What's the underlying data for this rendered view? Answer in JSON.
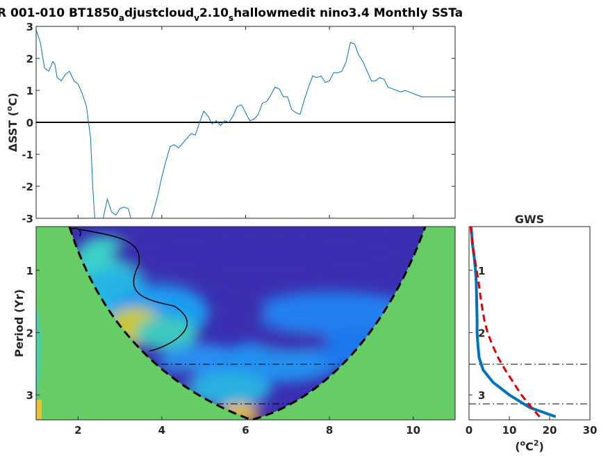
{
  "title": {
    "prefix": "R 001-010 BT1850",
    "sub1": "a",
    "mid1": "djustcloud",
    "sub2": "v",
    "mid2": "2.10",
    "sub3": "s",
    "suffix": "hallowmedit nino3.4 Monthly SSTa"
  },
  "colors": {
    "series": "#0072bd",
    "gws": "#0072bd",
    "significance": "#e00000",
    "masked": "#66cc66",
    "low_power": "#3a2fb0"
  },
  "chart_data": [
    {
      "type": "line",
      "ylabel": "ΔSST (°C)",
      "ylabel_main": "ΔSST (",
      "ylabel_unit": "o",
      "ylabel_tail": "C)",
      "xlim": [
        1,
        11
      ],
      "ylim": [
        -3,
        3
      ],
      "yticks": [
        -3,
        -2,
        -1,
        0,
        1,
        2,
        3
      ],
      "grid": false,
      "series": [
        {
          "x": [
            1.0,
            1.1,
            1.2,
            1.3,
            1.4,
            1.45,
            1.5,
            1.6,
            1.7,
            1.8,
            1.9,
            2.0,
            2.1,
            2.2,
            2.3,
            2.35,
            2.4,
            2.45,
            2.5,
            2.55,
            2.6,
            2.7,
            2.8,
            2.9,
            3.0,
            3.1,
            3.2,
            3.3,
            3.4,
            3.5,
            3.6,
            3.7,
            3.8,
            3.9,
            4.0,
            4.1,
            4.2,
            4.3,
            4.4,
            4.5,
            4.6,
            4.7,
            4.8,
            4.9,
            5.0,
            5.1,
            5.2,
            5.3,
            5.4,
            5.5,
            5.6,
            5.7,
            5.8,
            5.9,
            6.0,
            6.1,
            6.2,
            6.3,
            6.4,
            6.5,
            6.6,
            6.7,
            6.8,
            6.9,
            7.0,
            7.1,
            7.2,
            7.3,
            7.4,
            7.5,
            7.6,
            7.7,
            7.8,
            7.9,
            8.0,
            8.1,
            8.2,
            8.3,
            8.4,
            8.5,
            8.6,
            8.7,
            8.8,
            8.9,
            9.0,
            9.1,
            9.2,
            9.3,
            9.4,
            9.5,
            9.6,
            9.7,
            9.8,
            9.9,
            10.0,
            10.1,
            10.2,
            10.3,
            10.4,
            10.5,
            10.6,
            10.7,
            10.8,
            10.9,
            11.0
          ],
          "y": [
            2.9,
            2.5,
            1.7,
            1.6,
            1.9,
            1.8,
            1.4,
            1.3,
            1.5,
            1.6,
            1.3,
            1.2,
            0.9,
            0.5,
            -0.5,
            -2.0,
            -3.0,
            -3.5,
            -3.8,
            -3.4,
            -3.0,
            -2.4,
            -2.8,
            -2.9,
            -2.7,
            -2.65,
            -2.7,
            -3.2,
            -3.5,
            -3.6,
            -3.4,
            -3.2,
            -2.8,
            -2.3,
            -1.7,
            -1.2,
            -0.75,
            -0.7,
            -0.8,
            -0.65,
            -0.5,
            -0.35,
            -0.4,
            0.0,
            0.35,
            0.2,
            -0.05,
            0.05,
            -0.1,
            0.05,
            0.0,
            0.2,
            0.5,
            0.55,
            0.3,
            0.05,
            0.1,
            0.25,
            0.6,
            0.65,
            0.85,
            1.1,
            1.05,
            0.8,
            0.8,
            0.4,
            0.3,
            0.25,
            0.7,
            1.1,
            1.45,
            1.4,
            1.45,
            1.25,
            1.3,
            1.55,
            1.55,
            1.6,
            1.9,
            2.5,
            2.45,
            2.1,
            1.9,
            1.6,
            1.3,
            1.3,
            1.4,
            1.35,
            1.1,
            1.05,
            1.0,
            0.95,
            1.0,
            0.95,
            0.9,
            0.85,
            0.8,
            0.8,
            0.8,
            0.8,
            0.8,
            0.8,
            0.8,
            0.8,
            0.8
          ]
        }
      ]
    },
    {
      "type": "heatmap",
      "ylabel": "Period (Yr)",
      "xlim": [
        1,
        11
      ],
      "xticks": [
        2,
        4,
        6,
        8,
        10
      ],
      "yticks": [
        1,
        2,
        3
      ],
      "ylim": [
        0.3,
        3.4
      ],
      "reference_periods": [
        2,
        3
      ],
      "note": "wavelet power spectrum with cone of influence"
    },
    {
      "type": "line",
      "title": "GWS",
      "xlabel": "(°C²)",
      "xlabel_main": "(",
      "xlabel_unit_o": "o",
      "xlabel_unit": "C",
      "xlabel_sup": "2",
      "xlabel_tail": ")",
      "xlim": [
        0,
        30
      ],
      "xticks": [
        0,
        10,
        20,
        30
      ],
      "yticks": [
        1,
        2,
        3
      ],
      "series": [
        {
          "style": "solid",
          "period": [
            0.3,
            0.6,
            0.8,
            1.0,
            1.2,
            1.5,
            1.8,
            2.0,
            2.2,
            2.4,
            2.6,
            2.8,
            3.0,
            3.2,
            3.35
          ],
          "power": [
            0.5,
            0.9,
            1.3,
            1.6,
            1.8,
            1.9,
            2.0,
            2.0,
            2.2,
            2.5,
            3.5,
            6.0,
            10.0,
            15.0,
            21.5
          ]
        },
        {
          "style": "dashed",
          "period": [
            0.3,
            0.6,
            0.8,
            1.0,
            1.2,
            1.5,
            1.8,
            2.0,
            2.2,
            2.4,
            2.6,
            2.8,
            3.0,
            3.2,
            3.35
          ],
          "power": [
            0.4,
            0.9,
            1.4,
            1.9,
            2.4,
            3.0,
            3.8,
            4.6,
            5.8,
            7.2,
            9.0,
            11.0,
            13.0,
            15.5,
            17.5
          ]
        }
      ]
    }
  ],
  "labels": {
    "ts_yticks": [
      "-3",
      "-2",
      "-1",
      "0",
      "1",
      "2",
      "3"
    ],
    "wv_xticks": [
      "2",
      "4",
      "6",
      "8",
      "10"
    ],
    "wv_yticks": [
      "1",
      "2",
      "3"
    ],
    "gws_xticks": [
      "0",
      "10",
      "20",
      "30"
    ],
    "gws_yticks": [
      "1",
      "2",
      "3"
    ]
  }
}
